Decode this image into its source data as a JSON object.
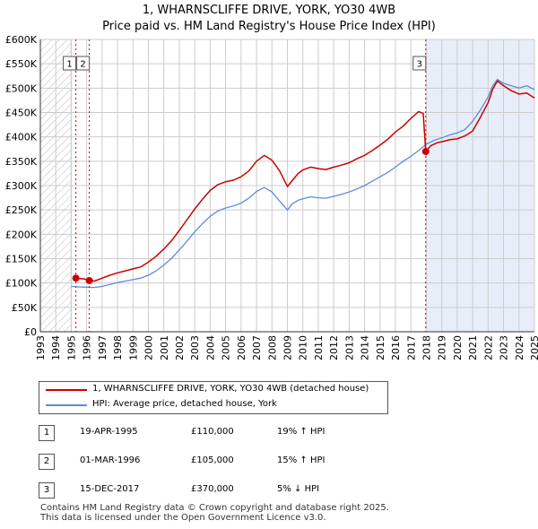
{
  "title_line1": "1, WHARNSCLIFFE DRIVE, YORK, YO30 4WB",
  "title_line2": "Price paid vs. HM Land Registry's House Price Index (HPI)",
  "colors": {
    "price": "#cc0000",
    "hpi": "#5b8ed6",
    "shade": "#e8eef9",
    "grid": "#cccccc",
    "hatch": "#bbbbbb"
  },
  "chart_data": {
    "type": "line",
    "title": "Price paid vs. HM Land Registry's House Price Index (HPI)",
    "xlabel": "",
    "ylabel": "",
    "xlim": [
      1993,
      2025
    ],
    "ylim": [
      0,
      600000
    ],
    "y_ticks": [
      0,
      50000,
      100000,
      150000,
      200000,
      250000,
      300000,
      350000,
      400000,
      450000,
      500000,
      550000,
      600000
    ],
    "y_tick_labels": [
      "£0",
      "£50K",
      "£100K",
      "£150K",
      "£200K",
      "£250K",
      "£300K",
      "£350K",
      "£400K",
      "£450K",
      "£500K",
      "£550K",
      "£600K"
    ],
    "x_ticks": [
      1993,
      1994,
      1995,
      1996,
      1997,
      1998,
      1999,
      2000,
      2001,
      2002,
      2003,
      2004,
      2005,
      2006,
      2007,
      2008,
      2009,
      2010,
      2011,
      2012,
      2013,
      2014,
      2015,
      2016,
      2017,
      2018,
      2019,
      2020,
      2021,
      2022,
      2023,
      2024,
      2025
    ],
    "x_tick_labels": [
      "1993",
      "1994",
      "1995",
      "1996",
      "1997",
      "1998",
      "1999",
      "2000",
      "2001",
      "2002",
      "2003",
      "2004",
      "2005",
      "2006",
      "2007",
      "2008",
      "2009",
      "2010",
      "2011",
      "2012",
      "2013",
      "2014",
      "2015",
      "2016",
      "2017",
      "2018",
      "2019",
      "2020",
      "2021",
      "2022",
      "2023",
      "2024",
      "2025"
    ],
    "hatched_before": 1995.0,
    "shaded_from": 2017.96,
    "series": [
      {
        "name": "1, WHARNSCLIFFE DRIVE, YORK, YO30 4WB (detached house)",
        "x": [
          1995.3,
          1995.6,
          1995.9,
          1996.17,
          1996.5,
          1997,
          1997.5,
          1998,
          1998.5,
          1999,
          1999.5,
          2000,
          2000.5,
          2001,
          2001.5,
          2002,
          2002.5,
          2003,
          2003.5,
          2004,
          2004.5,
          2005,
          2005.5,
          2006,
          2006.5,
          2007,
          2007.5,
          2008,
          2008.5,
          2009,
          2009.3,
          2009.7,
          2010,
          2010.5,
          2011,
          2011.5,
          2012,
          2012.5,
          2013,
          2013.5,
          2014,
          2014.5,
          2015,
          2015.5,
          2016,
          2016.5,
          2017,
          2017.5,
          2017.8,
          2017.96,
          2018.3,
          2018.7,
          2019,
          2019.5,
          2020,
          2020.5,
          2021,
          2021.5,
          2022,
          2022.3,
          2022.6,
          2023,
          2023.5,
          2024,
          2024.5,
          2025
        ],
        "values": [
          110000,
          109000,
          108000,
          105000,
          104000,
          110000,
          116000,
          121000,
          125000,
          129000,
          133000,
          143000,
          155000,
          170000,
          187000,
          208000,
          230000,
          252000,
          272000,
          290000,
          302000,
          308000,
          311000,
          318000,
          330000,
          350000,
          362000,
          352000,
          330000,
          298000,
          310000,
          325000,
          332000,
          338000,
          335000,
          333000,
          338000,
          342000,
          347000,
          355000,
          362000,
          372000,
          383000,
          395000,
          410000,
          422000,
          438000,
          452000,
          448000,
          370000,
          382000,
          388000,
          390000,
          394000,
          396000,
          402000,
          412000,
          440000,
          470000,
          498000,
          515000,
          505000,
          495000,
          488000,
          490000,
          480000
        ]
      },
      {
        "name": "HPI: Average price, detached house, York",
        "x": [
          1995.0,
          1995.5,
          1996,
          1996.5,
          1997,
          1997.5,
          1998,
          1998.5,
          1999,
          1999.5,
          2000,
          2000.5,
          2001,
          2001.5,
          2002,
          2002.5,
          2003,
          2003.5,
          2004,
          2004.5,
          2005,
          2005.5,
          2006,
          2006.5,
          2007,
          2007.5,
          2008,
          2008.5,
          2009,
          2009.3,
          2009.7,
          2010,
          2010.5,
          2011,
          2011.5,
          2012,
          2012.5,
          2013,
          2013.5,
          2014,
          2014.5,
          2015,
          2015.5,
          2016,
          2016.5,
          2017,
          2017.5,
          2018,
          2018.5,
          2019,
          2019.5,
          2020,
          2020.5,
          2021,
          2021.5,
          2022,
          2022.3,
          2022.6,
          2023,
          2023.5,
          2024,
          2024.5,
          2025
        ],
        "values": [
          93000,
          92000,
          91500,
          91000,
          93000,
          97000,
          101000,
          104000,
          107000,
          110000,
          116000,
          125000,
          137000,
          151000,
          168000,
          186000,
          205000,
          222000,
          237000,
          248000,
          254000,
          258000,
          264000,
          274000,
          288000,
          296000,
          287000,
          268000,
          250000,
          262000,
          270000,
          273000,
          277000,
          275000,
          274000,
          278000,
          282000,
          287000,
          293000,
          300000,
          309000,
          318000,
          327000,
          338000,
          350000,
          360000,
          372000,
          385000,
          393000,
          398000,
          404000,
          408000,
          415000,
          432000,
          455000,
          482000,
          505000,
          518000,
          510000,
          505000,
          500000,
          505000,
          497000
        ]
      }
    ],
    "sales": [
      {
        "label": "1",
        "x": 1995.3,
        "value": 110000
      },
      {
        "label": "2",
        "x": 1996.17,
        "value": 105000
      },
      {
        "label": "3",
        "x": 2017.96,
        "value": 370000
      }
    ]
  },
  "legend": [
    {
      "label": "1, WHARNSCLIFFE DRIVE, YORK, YO30 4WB (detached house)"
    },
    {
      "label": "HPI: Average price, detached house, York"
    }
  ],
  "sales_table": [
    {
      "num": "1",
      "date": "19-APR-1995",
      "price": "£110,000",
      "hpi": "19% ↑ HPI"
    },
    {
      "num": "2",
      "date": "01-MAR-1996",
      "price": "£105,000",
      "hpi": "15% ↑ HPI"
    },
    {
      "num": "3",
      "date": "15-DEC-2017",
      "price": "£370,000",
      "hpi": "5% ↓ HPI"
    }
  ],
  "footer_line1": "Contains HM Land Registry data © Crown copyright and database right 2025.",
  "footer_line2": "This data is licensed under the Open Government Licence v3.0."
}
